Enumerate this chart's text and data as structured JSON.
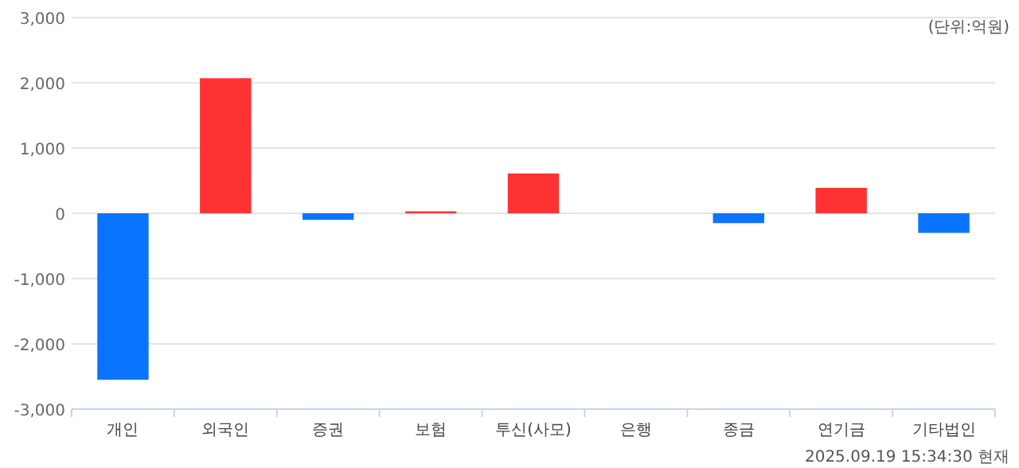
{
  "chart_data": {
    "type": "bar",
    "categories": [
      "개인",
      "외국인",
      "증권",
      "보험",
      "투신(사모)",
      "은행",
      "종금",
      "연기금",
      "기타법인"
    ],
    "values": [
      -2550,
      2070,
      -100,
      30,
      610,
      0,
      -150,
      390,
      -300
    ],
    "colors": [
      "#0a74ff",
      "#ff3333",
      "#0a74ff",
      "#ff3333",
      "#ff3333",
      "#ff3333",
      "#0a74ff",
      "#ff3333",
      "#0a74ff"
    ],
    "ylim": [
      -3000,
      3000
    ],
    "yticks": [
      {
        "value": -3000,
        "label": "-3,000"
      },
      {
        "value": -2000,
        "label": "-2,000"
      },
      {
        "value": -1000,
        "label": "-1,000"
      },
      0,
      {
        "value": 1000,
        "label": "1,000"
      },
      {
        "value": 2000,
        "label": "2,000"
      },
      {
        "value": 3000,
        "label": "3,000"
      }
    ],
    "grid": "y",
    "annotations": [
      "(단위:억원)",
      "2025.09.19 15:34:30 현재"
    ]
  }
}
